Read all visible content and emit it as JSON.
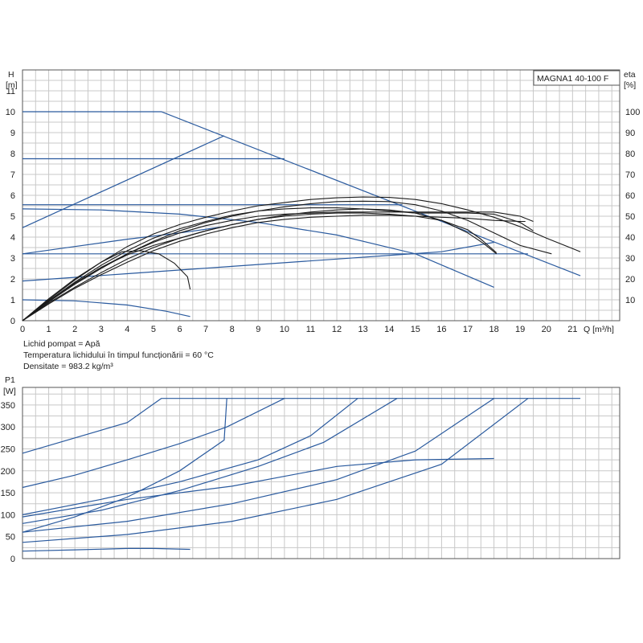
{
  "header": {
    "model": "MAGNA1 40-100 F"
  },
  "notes": {
    "fluid": "Lichid pompat = Apă",
    "temperature": "Temperatura lichidului în timpul funcționării = 60 °C",
    "density": "Densitate = 983.2 kg/m³"
  },
  "chart_data": [
    {
      "type": "line",
      "title": "",
      "xlabel": "Q [m³/h]",
      "ylabel_line1": "H",
      "ylabel_line2": "[m]",
      "y2label_line1": "eta",
      "y2label_line2": "[%]",
      "xlim": [
        0,
        22.8
      ],
      "ylim": [
        0,
        12
      ],
      "y2lim": [
        0,
        120
      ],
      "x_ticks": [
        0,
        1,
        2,
        3,
        4,
        5,
        6,
        7,
        8,
        9,
        10,
        11,
        12,
        13,
        14,
        15,
        16,
        17,
        18,
        19,
        20,
        21
      ],
      "y_ticks": [
        0,
        1,
        2,
        3,
        4,
        5,
        6,
        7,
        8,
        9,
        10,
        11
      ],
      "y2_ticks": [
        10,
        20,
        30,
        40,
        50,
        60,
        70,
        80,
        90,
        100
      ],
      "grid": true,
      "series": [
        {
          "kind": "head",
          "points": [
            [
              0,
              10.0
            ],
            [
              5.3,
              10.0
            ],
            [
              21.3,
              2.15
            ]
          ]
        },
        {
          "kind": "head",
          "points": [
            [
              0,
              7.75
            ],
            [
              10.0,
              7.75
            ]
          ]
        },
        {
          "kind": "head",
          "points": [
            [
              0,
              5.55
            ],
            [
              14.5,
              5.55
            ]
          ]
        },
        {
          "kind": "head",
          "points": [
            [
              0,
              3.2
            ],
            [
              19.3,
              3.2
            ]
          ]
        },
        {
          "kind": "head",
          "points": [
            [
              0,
              4.45
            ],
            [
              7.7,
              8.85
            ]
          ]
        },
        {
          "kind": "head",
          "points": [
            [
              0,
              3.2
            ],
            [
              2,
              3.55
            ],
            [
              4,
              3.9
            ],
            [
              6,
              4.2
            ],
            [
              7.7,
              4.5
            ]
          ]
        },
        {
          "kind": "head",
          "points": [
            [
              0,
              1.9
            ],
            [
              4,
              2.25
            ],
            [
              8,
              2.6
            ],
            [
              12,
              2.95
            ],
            [
              16,
              3.3
            ],
            [
              18,
              3.75
            ]
          ]
        },
        {
          "kind": "head",
          "points": [
            [
              0,
              5.35
            ],
            [
              3,
              5.3
            ],
            [
              6,
              5.1
            ],
            [
              9,
              4.7
            ],
            [
              12,
              4.1
            ],
            [
              15,
              3.2
            ],
            [
              18,
              1.6
            ]
          ]
        },
        {
          "kind": "head",
          "points": [
            [
              0,
              1.0
            ],
            [
              2,
              0.95
            ],
            [
              4,
              0.75
            ],
            [
              5.5,
              0.45
            ],
            [
              6.4,
              0.2
            ]
          ]
        },
        {
          "kind": "eta",
          "points": [
            [
              0,
              0
            ],
            [
              1,
              1.0
            ],
            [
              2,
              1.95
            ],
            [
              3,
              2.8
            ],
            [
              4,
              3.55
            ],
            [
              5,
              4.15
            ],
            [
              6,
              4.6
            ],
            [
              7,
              4.95
            ],
            [
              8,
              5.25
            ],
            [
              9,
              5.5
            ],
            [
              10,
              5.65
            ],
            [
              11,
              5.8
            ],
            [
              12,
              5.88
            ],
            [
              13,
              5.92
            ],
            [
              14,
              5.9
            ],
            [
              15,
              5.8
            ],
            [
              16,
              5.6
            ],
            [
              17,
              5.3
            ],
            [
              18,
              4.95
            ],
            [
              19,
              4.5
            ],
            [
              20,
              3.95
            ],
            [
              21,
              3.45
            ],
            [
              21.3,
              3.3
            ]
          ]
        },
        {
          "kind": "eta",
          "points": [
            [
              0,
              0
            ],
            [
              1,
              0.9
            ],
            [
              2,
              1.75
            ],
            [
              3,
              2.5
            ],
            [
              4,
              3.2
            ],
            [
              5,
              3.8
            ],
            [
              6,
              4.3
            ],
            [
              7,
              4.7
            ],
            [
              8,
              5.0
            ],
            [
              9,
              5.25
            ],
            [
              10,
              5.45
            ],
            [
              11,
              5.6
            ],
            [
              12,
              5.7
            ],
            [
              13,
              5.72
            ],
            [
              14,
              5.7
            ],
            [
              15,
              5.55
            ],
            [
              16,
              5.25
            ],
            [
              17,
              4.8
            ],
            [
              18,
              4.2
            ],
            [
              19,
              3.6
            ],
            [
              20.2,
              3.2
            ]
          ]
        },
        {
          "kind": "eta",
          "points": [
            [
              0,
              0
            ],
            [
              1,
              0.85
            ],
            [
              2,
              1.6
            ],
            [
              3,
              2.3
            ],
            [
              4,
              2.95
            ],
            [
              5,
              3.5
            ],
            [
              6,
              3.95
            ],
            [
              7,
              4.3
            ],
            [
              8,
              4.6
            ],
            [
              9,
              4.85
            ],
            [
              10,
              5.0
            ],
            [
              11,
              5.1
            ],
            [
              12,
              5.15
            ],
            [
              13,
              5.15
            ],
            [
              14,
              5.1
            ],
            [
              15,
              5.0
            ],
            [
              16,
              4.8
            ],
            [
              17,
              4.35
            ],
            [
              17.5,
              3.9
            ],
            [
              18.1,
              3.25
            ]
          ]
        },
        {
          "kind": "eta",
          "points": [
            [
              0,
              0
            ],
            [
              1,
              0.95
            ],
            [
              2,
              1.85
            ],
            [
              3,
              2.65
            ],
            [
              4,
              3.35
            ],
            [
              5,
              3.95
            ],
            [
              6,
              4.4
            ],
            [
              7,
              4.75
            ],
            [
              8,
              5.05
            ],
            [
              9,
              5.25
            ],
            [
              10,
              5.35
            ],
            [
              11,
              5.4
            ],
            [
              12,
              5.4
            ],
            [
              13,
              5.35
            ],
            [
              14,
              5.25
            ],
            [
              15,
              5.15
            ],
            [
              16,
              5.15
            ],
            [
              17,
              5.15
            ],
            [
              18,
              5.1
            ],
            [
              19,
              4.7
            ],
            [
              19.5,
              4.3
            ]
          ]
        },
        {
          "kind": "eta",
          "points": [
            [
              0,
              0
            ],
            [
              1,
              0.95
            ],
            [
              2,
              1.8
            ],
            [
              3,
              2.55
            ],
            [
              4,
              3.2
            ],
            [
              5,
              3.75
            ],
            [
              6,
              4.2
            ],
            [
              7,
              4.55
            ],
            [
              8,
              4.8
            ],
            [
              9,
              5.0
            ],
            [
              10,
              5.1
            ],
            [
              11,
              5.15
            ],
            [
              12,
              5.2
            ],
            [
              13,
              5.2
            ],
            [
              14,
              5.2
            ],
            [
              15,
              5.2
            ],
            [
              16,
              5.2
            ],
            [
              17,
              5.2
            ],
            [
              18,
              5.2
            ],
            [
              19,
              5.0
            ],
            [
              19.5,
              4.75
            ]
          ]
        },
        {
          "kind": "eta",
          "points": [
            [
              0,
              0
            ],
            [
              1,
              0.8
            ],
            [
              2,
              1.55
            ],
            [
              3,
              2.2
            ],
            [
              4,
              2.8
            ],
            [
              5,
              3.35
            ],
            [
              6,
              3.8
            ],
            [
              7,
              4.15
            ],
            [
              8,
              4.45
            ],
            [
              9,
              4.7
            ],
            [
              10,
              4.85
            ],
            [
              11,
              4.95
            ],
            [
              12,
              5.0
            ],
            [
              13,
              5.05
            ],
            [
              14,
              5.05
            ],
            [
              15,
              5.0
            ],
            [
              16,
              4.95
            ],
            [
              17,
              4.9
            ],
            [
              18,
              4.8
            ],
            [
              19,
              4.75
            ],
            [
              19.2,
              4.75
            ]
          ]
        },
        {
          "kind": "eta",
          "points": [
            [
              0,
              0
            ],
            [
              1,
              1.05
            ],
            [
              2,
              2.0
            ],
            [
              3,
              2.8
            ],
            [
              3.8,
              3.3
            ],
            [
              4.5,
              3.35
            ],
            [
              5.2,
              3.2
            ],
            [
              5.8,
              2.75
            ],
            [
              6.3,
              2.1
            ],
            [
              6.4,
              1.5
            ]
          ]
        },
        {
          "kind": "eta",
          "points": [
            [
              0,
              0
            ],
            [
              1,
              0.95
            ],
            [
              2,
              1.8
            ],
            [
              3,
              2.55
            ],
            [
              4,
              3.15
            ],
            [
              5,
              3.6
            ],
            [
              6,
              3.95
            ],
            [
              7,
              4.3
            ],
            [
              8,
              4.6
            ],
            [
              9,
              4.85
            ],
            [
              10,
              5.05
            ],
            [
              11,
              5.2
            ],
            [
              12,
              5.3
            ],
            [
              13,
              5.35
            ],
            [
              14,
              5.3
            ],
            [
              15,
              5.15
            ],
            [
              16,
              4.8
            ],
            [
              17,
              4.2
            ],
            [
              17.6,
              3.7
            ],
            [
              18.1,
              3.2
            ]
          ]
        }
      ]
    },
    {
      "type": "line",
      "title": "",
      "xlabel": "",
      "ylabel_line1": "P1",
      "ylabel_line2": "[W]",
      "xlim": [
        0,
        22.8
      ],
      "ylim": [
        0,
        390
      ],
      "y_ticks": [
        0,
        50,
        100,
        150,
        200,
        250,
        300,
        350
      ],
      "grid": true,
      "series": [
        {
          "points": [
            [
              0,
              240
            ],
            [
              2,
              275
            ],
            [
              4,
              310
            ],
            [
              5.3,
              365
            ],
            [
              21.3,
              365
            ]
          ]
        },
        {
          "points": [
            [
              0,
              162
            ],
            [
              2,
              190
            ],
            [
              4,
              225
            ],
            [
              6,
              262
            ],
            [
              7.8,
              300
            ],
            [
              10,
              365
            ]
          ]
        },
        {
          "points": [
            [
              0,
              60
            ],
            [
              2,
              95
            ],
            [
              4,
              140
            ],
            [
              6,
              200
            ],
            [
              7.7,
              270
            ],
            [
              7.8,
              365
            ]
          ]
        },
        {
          "points": [
            [
              0,
              100
            ],
            [
              3,
              135
            ],
            [
              6,
              175
            ],
            [
              9,
              225
            ],
            [
              11,
              280
            ],
            [
              12.8,
              365
            ]
          ]
        },
        {
          "points": [
            [
              0,
              80
            ],
            [
              3,
              110
            ],
            [
              6,
              155
            ],
            [
              9,
              210
            ],
            [
              11.5,
              265
            ],
            [
              14.3,
              365
            ]
          ]
        },
        {
          "points": [
            [
              0,
              60
            ],
            [
              4,
              85
            ],
            [
              8,
              125
            ],
            [
              12,
              180
            ],
            [
              15,
              245
            ],
            [
              18,
              365
            ]
          ]
        },
        {
          "points": [
            [
              0,
              37
            ],
            [
              4,
              55
            ],
            [
              8,
              85
            ],
            [
              12,
              135
            ],
            [
              16,
              215
            ],
            [
              19.3,
              365
            ]
          ]
        },
        {
          "points": [
            [
              0,
              95
            ],
            [
              4,
              135
            ],
            [
              8,
              165
            ],
            [
              12,
              210
            ],
            [
              15,
              225
            ],
            [
              18,
              228
            ]
          ]
        },
        {
          "points": [
            [
              0,
              17
            ],
            [
              2,
              20
            ],
            [
              4,
              23
            ],
            [
              5,
              23
            ],
            [
              6.4,
              21
            ]
          ]
        }
      ]
    }
  ]
}
